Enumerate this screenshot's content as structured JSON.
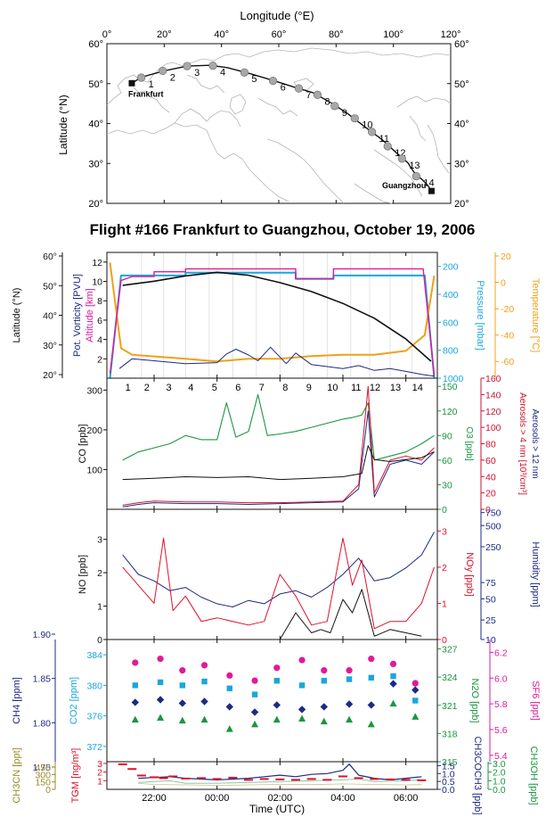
{
  "title": "Flight #166 Frankfurt to Guangzhou, October 19, 2006",
  "colors": {
    "black": "#111111",
    "magenta": "#e2189a",
    "cyan": "#1aa6dc",
    "orange": "#f0a018",
    "navy": "#1c2a85",
    "green": "#1a9640",
    "red": "#e0102a",
    "darkred": "#cc1230",
    "olive": "#9a8a2a",
    "grey": "#9a9a9a"
  },
  "map": {
    "xlabel": "Longitude (°E)",
    "ylabel": "Latitude (°N)",
    "xticks": [
      "0°",
      "20°",
      "40°",
      "60°",
      "80°",
      "100°",
      "120°"
    ],
    "yticks": [
      "60°",
      "50°",
      "40°",
      "30°",
      "20°"
    ],
    "yticks_right": [
      "60°",
      "50°",
      "40°",
      "30°",
      "20°"
    ],
    "xlim": [
      0,
      120
    ],
    "ylim": [
      20,
      60
    ],
    "cities": [
      {
        "name": "Frankfurt",
        "lon": 8.7,
        "lat": 50.1
      },
      {
        "name": "Guangzhou",
        "lon": 113.3,
        "lat": 23.1
      }
    ],
    "track": [
      [
        8.7,
        50.1
      ],
      [
        12,
        51.6
      ],
      [
        20,
        53.2
      ],
      [
        28,
        54.4
      ],
      [
        36,
        54.6
      ],
      [
        42,
        54.0
      ],
      [
        50,
        52.5
      ],
      [
        58,
        50.8
      ],
      [
        65,
        49.2
      ],
      [
        72,
        47.7
      ],
      [
        78,
        45.3
      ],
      [
        84,
        42.5
      ],
      [
        90,
        39.2
      ],
      [
        96,
        36.0
      ],
      [
        101,
        32.7
      ],
      [
        105,
        30.2
      ],
      [
        107,
        28.0
      ],
      [
        108,
        27.1
      ],
      [
        110,
        26.0
      ],
      [
        112,
        24.5
      ],
      [
        113.3,
        23.1
      ]
    ],
    "segments": [
      {
        "label": "1",
        "lon": 12,
        "lat": 51.5
      },
      {
        "label": "2",
        "lon": 19.5,
        "lat": 53.2
      },
      {
        "label": "3",
        "lon": 28,
        "lat": 54.4
      },
      {
        "label": "4",
        "lon": 37,
        "lat": 54.5
      },
      {
        "label": "5",
        "lon": 48,
        "lat": 52.8
      },
      {
        "label": "6",
        "lon": 58,
        "lat": 50.7
      },
      {
        "label": "7",
        "lon": 67,
        "lat": 48.8
      },
      {
        "label": "8",
        "lon": 73.5,
        "lat": 47.2
      },
      {
        "label": "9",
        "lon": 79.5,
        "lat": 44.4
      },
      {
        "label": "10",
        "lon": 86.5,
        "lat": 41.3
      },
      {
        "label": "11",
        "lon": 92.5,
        "lat": 37.9
      },
      {
        "label": "12",
        "lon": 98,
        "lat": 34.3
      },
      {
        "label": "13",
        "lon": 103,
        "lat": 31.2
      },
      {
        "label": "14",
        "lon": 108,
        "lat": 26.8
      }
    ]
  },
  "xaxis": {
    "label": "Time (UTC)",
    "ticks": [
      "22:00",
      "00:00",
      "02:00",
      "04:00",
      "06:00"
    ],
    "tick_hours": [
      22,
      24,
      26,
      28,
      30
    ],
    "range": [
      20.5,
      31.0
    ]
  },
  "chart_data": {
    "panel1": {
      "type": "line",
      "ylabel_outer": "Latitude (°N)",
      "ylabel_inner1": "Pot. Vorticity [PVU]",
      "ylabel_inner2": "Altitude [km]",
      "ylabel_right1": "Pressure [mbar]",
      "ylabel_right2": "Temperature [°C]",
      "lat_ticks": [
        "60°",
        "50°",
        "40°",
        "30°",
        "20°"
      ],
      "lat_range": [
        20,
        60
      ],
      "pv_ticks": [
        "2",
        "4",
        "6",
        "8",
        "10",
        "12"
      ],
      "pv_range": [
        0,
        13
      ],
      "pressure_ticks": [
        "200",
        "400",
        "600",
        "800",
        "1000"
      ],
      "pressure_range": [
        1000,
        100
      ],
      "temp_ticks": [
        "20",
        "0",
        "-20",
        "-40",
        "-60"
      ],
      "temp_range": [
        -70,
        20
      ],
      "latitude": {
        "x": [
          21.0,
          22.0,
          23.0,
          24.0,
          25.0,
          26.0,
          27.0,
          28.0,
          29.0,
          30.0,
          30.8
        ],
        "y": [
          50.1,
          51.5,
          53.3,
          54.5,
          53.5,
          51.0,
          48.0,
          44.0,
          39.0,
          32.0,
          24.5
        ]
      },
      "altitude": {
        "x": [
          20.6,
          20.95,
          21.3,
          22.0,
          22.0,
          23.0,
          23.0,
          26.5,
          26.5,
          27.7,
          27.7,
          30.55,
          30.9
        ],
        "y": [
          0.5,
          10.1,
          10.5,
          10.5,
          11.0,
          11.0,
          11.3,
          11.3,
          10.3,
          10.3,
          11.3,
          11.3,
          0.3
        ]
      },
      "pressure": {
        "x": [
          20.6,
          20.95,
          21.3,
          23.0,
          23.0,
          26.5,
          26.5,
          27.7,
          27.7,
          30.6,
          30.9
        ],
        "y": [
          1000,
          265,
          265,
          265,
          245,
          245,
          290,
          290,
          265,
          265,
          1000
        ]
      },
      "temperature": {
        "x": [
          20.6,
          20.95,
          21.3,
          23.0,
          24.0,
          25.0,
          26.0,
          27.0,
          28.0,
          29.0,
          30.0,
          30.6,
          30.9
        ],
        "y": [
          15,
          -50,
          -55,
          -58,
          -60,
          -58,
          -58,
          -56,
          -55,
          -55,
          -52,
          -40,
          5
        ]
      },
      "pv": {
        "x": [
          20.9,
          21.3,
          22.0,
          23.0,
          24.0,
          24.3,
          24.6,
          25.0,
          25.3,
          25.7,
          26.2,
          26.5,
          27.0,
          27.5,
          28.0,
          28.5,
          29.0,
          29.5,
          30.0,
          30.5,
          30.9
        ],
        "y": [
          1.0,
          2.0,
          1.8,
          1.5,
          1.6,
          2.5,
          3.0,
          2.4,
          1.8,
          3.2,
          1.5,
          2.6,
          1.4,
          1.2,
          1.0,
          1.3,
          0.8,
          1.0,
          0.7,
          0.4,
          0.2
        ]
      }
    },
    "panel2": {
      "type": "line",
      "ylabel": "CO [ppb]",
      "ylabel_right1": "O3 [ppb]",
      "ylabel_right2": "Aerosols > 4 nm [10³/cm³]",
      "ylabel_right3": "Aerosols > 12 nm",
      "co_ticks": [
        "100",
        "200",
        "300"
      ],
      "co_range": [
        0,
        330
      ],
      "o3_ticks": [
        "0",
        "30",
        "60",
        "90",
        "120",
        "150"
      ],
      "o3_range": [
        0,
        160
      ],
      "aer_ticks": [
        "0",
        "20",
        "40",
        "60",
        "80",
        "100",
        "120",
        "140",
        "160"
      ],
      "aer_range": [
        0,
        160
      ],
      "segments": [
        "1",
        "2",
        "3",
        "4",
        "5",
        "6",
        "7",
        "8",
        "9",
        "10",
        "11",
        "12",
        "13",
        "14"
      ],
      "segment_starts": [
        21.0,
        21.6,
        22.3,
        23.0,
        23.75,
        24.5,
        25.25,
        26.0,
        26.75,
        27.5,
        28.25,
        28.85,
        29.5,
        30.2
      ],
      "co": {
        "x": [
          21.0,
          22.0,
          23.0,
          24.0,
          25.0,
          26.0,
          27.0,
          28.0,
          28.6,
          28.8,
          29.0,
          29.5,
          30.0,
          30.5,
          30.9
        ],
        "y": [
          75,
          78,
          82,
          80,
          82,
          75,
          78,
          82,
          90,
          160,
          125,
          120,
          125,
          130,
          145
        ]
      },
      "o3": {
        "x": [
          21.0,
          21.5,
          22.0,
          22.5,
          23.0,
          23.5,
          24.0,
          24.3,
          24.6,
          25.0,
          25.3,
          25.6,
          26.0,
          26.5,
          27.0,
          27.5,
          28.0,
          28.3,
          28.6,
          28.8,
          29.0,
          29.5,
          30.0,
          30.5,
          30.9
        ],
        "y": [
          60,
          70,
          75,
          80,
          90,
          85,
          85,
          130,
          88,
          95,
          140,
          90,
          92,
          95,
          100,
          105,
          110,
          112,
          115,
          130,
          60,
          65,
          70,
          80,
          90
        ]
      },
      "aer4": {
        "x": [
          21.0,
          21.5,
          22.0,
          23.0,
          24.0,
          25.0,
          26.0,
          27.0,
          28.0,
          28.5,
          28.8,
          29.0,
          29.5,
          30.0,
          30.5,
          30.9
        ],
        "y": [
          5,
          8,
          10,
          9,
          9,
          8,
          8,
          9,
          10,
          30,
          150,
          20,
          60,
          65,
          60,
          75
        ]
      },
      "aer12": {
        "x": [
          21.0,
          21.5,
          22.0,
          23.0,
          24.0,
          25.0,
          26.0,
          27.0,
          28.0,
          28.5,
          28.8,
          29.0,
          29.5,
          30.0,
          30.5,
          30.9
        ],
        "y": [
          3,
          6,
          8,
          7,
          7,
          6,
          7,
          8,
          9,
          25,
          120,
          15,
          55,
          60,
          55,
          70
        ]
      }
    },
    "panel3": {
      "type": "line",
      "ylabel": "NO [ppb]",
      "ylabel_right1": "NOy [ppb]",
      "ylabel_right2": "Humidity [ppm]",
      "no_ticks": [
        "0",
        "1",
        "2",
        "3"
      ],
      "no_range": [
        0,
        3.9
      ],
      "noy_ticks": [
        "0",
        "1",
        "2",
        "3"
      ],
      "noy_range": [
        0,
        3.6
      ],
      "hum_ticks": [
        "10",
        "25",
        "50",
        "75",
        "250",
        "500",
        "750"
      ],
      "no": {
        "x": [
          26.0,
          26.5,
          27.0,
          27.3,
          27.6,
          28.0,
          28.3,
          28.6,
          29.0,
          29.5,
          30.0,
          30.5
        ],
        "y": [
          0.0,
          0.8,
          0.2,
          0.3,
          0.2,
          1.2,
          0.8,
          1.5,
          0.1,
          0.3,
          0.2,
          0.1
        ]
      },
      "noy": {
        "x": [
          21.0,
          21.5,
          22.0,
          22.3,
          22.6,
          23.0,
          23.5,
          24.0,
          25.0,
          25.5,
          26.0,
          26.5,
          27.0,
          27.5,
          28.0,
          28.3,
          28.6,
          29.0,
          29.5,
          30.0,
          30.5,
          30.9
        ],
        "y": [
          2.0,
          1.5,
          1.0,
          2.8,
          0.8,
          1.2,
          0.5,
          0.6,
          0.4,
          0.5,
          1.8,
          1.2,
          0.4,
          0.5,
          2.8,
          1.5,
          2.2,
          0.3,
          0.5,
          0.5,
          1.0,
          2.0
        ]
      },
      "humidity": {
        "x": [
          21.0,
          21.5,
          22.0,
          22.5,
          23.0,
          23.5,
          24.0,
          24.5,
          25.0,
          25.5,
          26.0,
          26.5,
          27.0,
          27.5,
          28.0,
          28.5,
          29.0,
          29.5,
          30.0,
          30.5,
          30.9
        ],
        "y": [
          2.6,
          2.0,
          1.8,
          1.5,
          1.6,
          1.3,
          1.1,
          1.0,
          1.2,
          1.1,
          1.4,
          1.5,
          1.3,
          1.6,
          2.0,
          2.5,
          1.8,
          1.9,
          2.2,
          2.6,
          3.3
        ]
      }
    },
    "panel4": {
      "type": "scatter",
      "ylabel": "CH4 [ppm]",
      "ylabel2": "CO2 [ppm]",
      "ylabel_right1": "N2O [ppb]",
      "ylabel_right2": "SF6 [ppt]",
      "ch4_ticks": [
        "1.75",
        "1.80",
        "1.85",
        "1.90"
      ],
      "ch4_range": [
        1.75,
        1.9
      ],
      "co2_ticks": [
        "372",
        "376",
        "380",
        "384"
      ],
      "co2_range": [
        370,
        386
      ],
      "n2o_ticks": [
        "315",
        "318",
        "321",
        "324",
        "327"
      ],
      "n2o_range": [
        315,
        328
      ],
      "sf6_ticks": [
        "5.4",
        "5.6",
        "5.8",
        "6.0",
        "6.2"
      ],
      "sf6_range": [
        5.35,
        6.3
      ],
      "x": [
        21.4,
        22.2,
        22.9,
        23.6,
        24.4,
        25.2,
        25.9,
        26.7,
        27.4,
        28.2,
        28.9,
        29.6,
        30.3
      ],
      "sf6": [
        6.12,
        6.15,
        6.06,
        6.1,
        6.02,
        5.98,
        6.08,
        6.14,
        6.06,
        6.06,
        6.15,
        6.11,
        5.96
      ],
      "co2": [
        380,
        380.4,
        380,
        380.5,
        379.6,
        378.8,
        380.6,
        380,
        380.6,
        380.8,
        381,
        381.2,
        378
      ],
      "ch4": [
        1.823,
        1.826,
        1.822,
        1.824,
        1.818,
        1.812,
        1.82,
        1.815,
        1.818,
        1.821,
        1.82,
        1.844,
        1.837
      ],
      "n2o": [
        319.5,
        319.7,
        319.4,
        319.5,
        318.5,
        319.0,
        319.5,
        319.6,
        319.3,
        319.5,
        319.0,
        321.2,
        319.8
      ]
    },
    "panel5": {
      "type": "line",
      "ylabel": "TGM [ng/m³]",
      "ylabel2": "CH3CN [ppt]",
      "ylabel_right1": "CH3COCH3 [ppb]",
      "ylabel_right2": "CH3OH [ppb]",
      "tgm_ticks": [
        "1",
        "2",
        "3"
      ],
      "tgm_range": [
        0,
        3.2
      ],
      "ch3cn_ticks": [
        "0",
        "150",
        "300",
        "450"
      ],
      "ch3cn_range": [
        0,
        560
      ],
      "acetone_ticks": [
        "0.0",
        "0.5",
        "1.0",
        "1.5"
      ],
      "acetone_range": [
        0,
        1.75
      ],
      "methanol_ticks": [
        "0.0",
        "1.0",
        "2.0",
        "3.0"
      ],
      "methanol_range": [
        0,
        3.2
      ],
      "tgm": {
        "x": [
          21.0,
          21.3,
          21.6,
          22.0,
          22.3,
          22.6,
          23.0,
          23.5,
          24.0,
          24.5,
          25.0,
          25.5,
          26.0,
          26.5,
          27.0,
          27.5,
          28.0,
          28.5,
          29.0,
          29.5,
          30.0,
          30.5
        ],
        "y": [
          2.9,
          2.35,
          1.6,
          1.4,
          1.3,
          1.5,
          1.25,
          1.3,
          1.2,
          1.35,
          1.1,
          1.2,
          1.15,
          1.1,
          1.2,
          1.1,
          1.5,
          1.3,
          1.2,
          1.15,
          1.1,
          1.05
        ]
      },
      "acetone": {
        "x": [
          21.5,
          22.0,
          22.5,
          23.0,
          23.5,
          24.0,
          24.5,
          25.0,
          25.5,
          26.0,
          26.5,
          27.0,
          27.5,
          28.0,
          28.2,
          28.5,
          29.0,
          29.5,
          30.0,
          30.5
        ],
        "y": [
          0.7,
          0.75,
          0.8,
          0.7,
          0.65,
          0.6,
          0.65,
          0.7,
          0.8,
          0.9,
          0.8,
          0.95,
          1.0,
          1.2,
          1.6,
          0.9,
          0.7,
          0.6,
          0.7,
          0.8
        ]
      },
      "methanol": {
        "x": [
          21.5,
          22.0,
          22.5,
          23.0,
          24.0,
          25.0,
          26.0,
          27.0,
          28.0,
          28.5,
          29.0,
          30.0,
          30.5
        ],
        "y": [
          0.8,
          0.9,
          1.0,
          0.7,
          0.7,
          0.8,
          0.9,
          1.0,
          1.1,
          1.2,
          0.9,
          1.0,
          1.1
        ]
      },
      "ch3cn": {
        "x": [
          21.5,
          22.0,
          23.0,
          24.0,
          25.0,
          26.0,
          27.0,
          28.0,
          29.0,
          30.0,
          30.5
        ],
        "y": [
          120,
          100,
          90,
          80,
          90,
          100,
          95,
          110,
          100,
          90,
          95
        ]
      }
    }
  }
}
